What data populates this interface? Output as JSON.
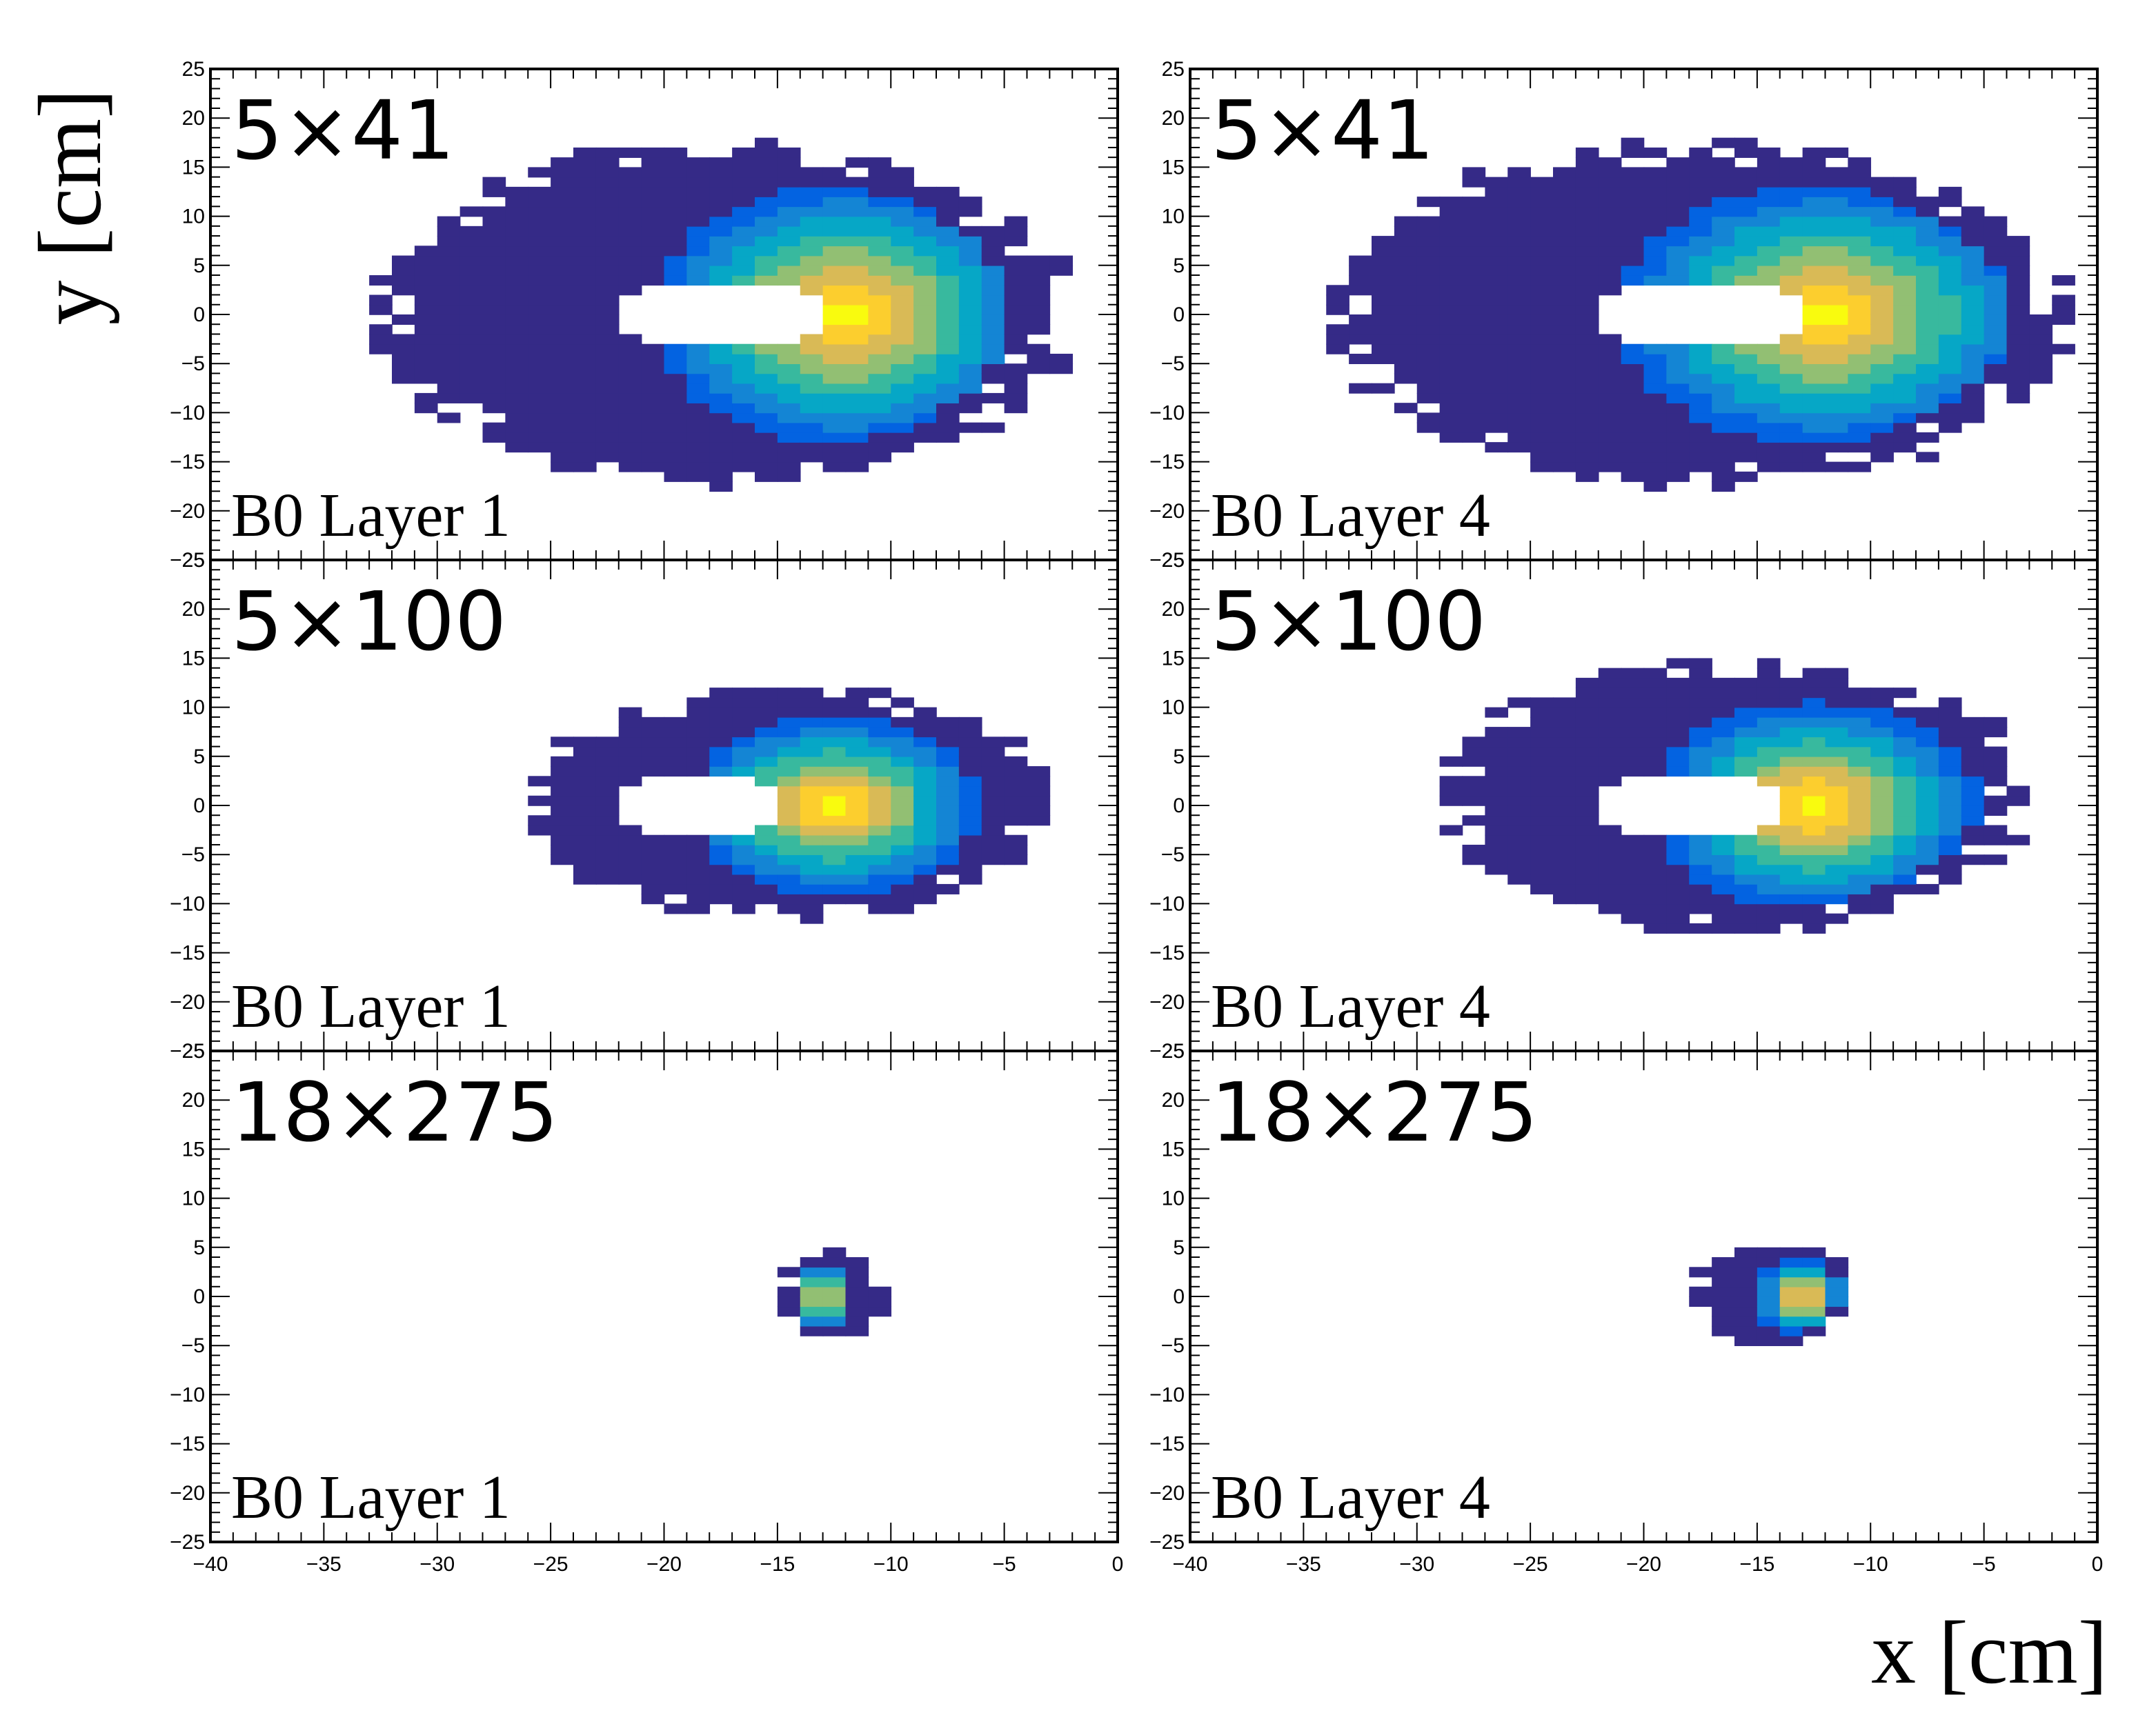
{
  "figure": {
    "ylabel": "y [cm]",
    "xlabel": "x [cm]",
    "xlim": [
      -40,
      0
    ],
    "ylim": [
      -25,
      25
    ],
    "x_ticks": [
      "−40",
      "−35",
      "−30",
      "−25",
      "−20",
      "−15",
      "−10",
      "−5",
      "0"
    ],
    "y_ticks": [
      "25",
      "20",
      "15",
      "10",
      "5",
      "0",
      "−5",
      "−10",
      "−15",
      "−20",
      "−25"
    ]
  },
  "colors": {
    "palette": [
      "#352a87",
      "#0363e1",
      "#1485d4",
      "#06a7c6",
      "#38b99e",
      "#92bf73",
      "#d9ba56",
      "#fcce2e",
      "#f9fb0e"
    ],
    "frame": "#000000",
    "background": "#ffffff"
  },
  "chart_data": [
    {
      "type": "heatmap",
      "panel": "row1-left",
      "energy_label": "5×41",
      "layer_label": "B0 Layer 1",
      "x_range": [
        -40,
        0
      ],
      "y_range": [
        -25,
        25
      ],
      "bin_size_cm": [
        1,
        1
      ],
      "beam_hole": {
        "x_range": [
          -22,
          -13
        ],
        "y_range": [
          -3.5,
          3.5
        ]
      },
      "peak": {
        "x": -12,
        "y": 0
      },
      "occupancy_extent": {
        "x_range": [
          -34,
          -1
        ],
        "y_range": [
          -19,
          19
        ]
      }
    },
    {
      "type": "heatmap",
      "panel": "row1-right",
      "energy_label": "5×41",
      "layer_label": "B0 Layer 4",
      "x_range": [
        -40,
        0
      ],
      "y_range": [
        -25,
        25
      ],
      "bin_size_cm": [
        1,
        1
      ],
      "beam_hole": {
        "x_range": [
          -22,
          -13
        ],
        "y_range": [
          -3.5,
          3.5
        ]
      },
      "peak": {
        "x": -12,
        "y": 0
      },
      "occupancy_extent": {
        "x_range": [
          -35,
          0
        ],
        "y_range": [
          -19,
          19
        ]
      }
    },
    {
      "type": "heatmap",
      "panel": "row2-left",
      "energy_label": "5×100",
      "layer_label": "B0 Layer 1",
      "x_range": [
        -40,
        0
      ],
      "y_range": [
        -25,
        25
      ],
      "bin_size_cm": [
        1,
        1
      ],
      "beam_hole": {
        "x_range": [
          -22,
          -15
        ],
        "y_range": [
          -3.5,
          3.5
        ]
      },
      "peak": {
        "x": -12.5,
        "y": 0
      },
      "occupancy_extent": {
        "x_range": [
          -27,
          -2
        ],
        "y_range": [
          -12.5,
          13
        ]
      }
    },
    {
      "type": "heatmap",
      "panel": "row2-right",
      "energy_label": "5×100",
      "layer_label": "B0 Layer 4",
      "x_range": [
        -40,
        0
      ],
      "y_range": [
        -25,
        25
      ],
      "bin_size_cm": [
        1,
        1
      ],
      "beam_hole": {
        "x_range": [
          -22,
          -13.5
        ],
        "y_range": [
          -3.5,
          3.5
        ]
      },
      "peak": {
        "x": -12.5,
        "y": 0
      },
      "occupancy_extent": {
        "x_range": [
          -30,
          -2
        ],
        "y_range": [
          -14,
          16
        ]
      }
    },
    {
      "type": "heatmap",
      "panel": "row3-left",
      "energy_label": "18×275",
      "layer_label": "B0 Layer 1",
      "x_range": [
        -40,
        0
      ],
      "y_range": [
        -25,
        25
      ],
      "bin_size_cm": [
        1,
        1
      ],
      "peak": {
        "x": -13,
        "y": 0
      },
      "occupancy_extent": {
        "x_range": [
          -15,
          -10
        ],
        "y_range": [
          -4.5,
          5
        ]
      }
    },
    {
      "type": "heatmap",
      "panel": "row3-right",
      "energy_label": "18×275",
      "layer_label": "B0 Layer 4",
      "x_range": [
        -40,
        0
      ],
      "y_range": [
        -25,
        25
      ],
      "bin_size_cm": [
        1,
        1
      ],
      "peak": {
        "x": -13,
        "y": 0
      },
      "occupancy_extent": {
        "x_range": [
          -18,
          -10.5
        ],
        "y_range": [
          -5.5,
          6
        ]
      }
    }
  ]
}
